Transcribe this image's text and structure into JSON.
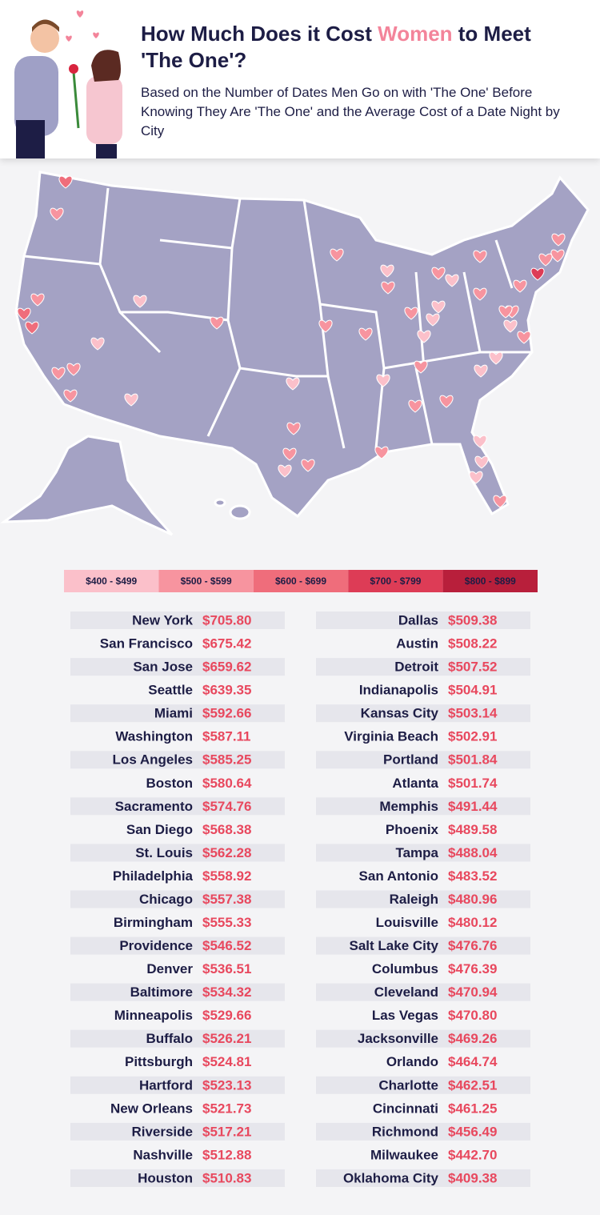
{
  "header": {
    "title": [
      "How Much Does it Cost ",
      "Women",
      " to Meet 'The One'?"
    ],
    "subtitle": "Based on the Number of Dates Men Go on with 'The One' Before Knowing They Are 'The One' and the Average Cost of a Date Night by City"
  },
  "legend": [
    {
      "min": 400,
      "max": 499,
      "label": "$400 - $499",
      "color": "#fbc0ca"
    },
    {
      "min": 500,
      "max": 599,
      "label": "$500 - $599",
      "color": "#f7949f"
    },
    {
      "min": 600,
      "max": 699,
      "label": "$600 - $699",
      "color": "#ef6d7b"
    },
    {
      "min": 700,
      "max": 799,
      "label": "$700 - $799",
      "color": "#dd3c56"
    },
    {
      "min": 800,
      "max": 899,
      "label": "$800 - $899",
      "color": "#b81f3b"
    }
  ],
  "table": {
    "columns": [
      {
        "rows": [
          {
            "city": "New York",
            "cost": {
              "value": 705.8,
              "label": "$705.80"
            }
          },
          {
            "city": "San Francisco",
            "cost": {
              "value": 675.42,
              "label": "$675.42"
            }
          },
          {
            "city": "San Jose",
            "cost": {
              "value": 659.62,
              "label": "$659.62"
            }
          },
          {
            "city": "Seattle",
            "cost": {
              "value": 639.35,
              "label": "$639.35"
            }
          },
          {
            "city": "Miami",
            "cost": {
              "value": 592.66,
              "label": "$592.66"
            }
          },
          {
            "city": "Washington",
            "cost": {
              "value": 587.11,
              "label": "$587.11"
            }
          },
          {
            "city": "Los Angeles",
            "cost": {
              "value": 585.25,
              "label": "$585.25"
            }
          },
          {
            "city": "Boston",
            "cost": {
              "value": 580.64,
              "label": "$580.64"
            }
          },
          {
            "city": "Sacramento",
            "cost": {
              "value": 574.76,
              "label": "$574.76"
            }
          },
          {
            "city": "San Diego",
            "cost": {
              "value": 568.38,
              "label": "$568.38"
            }
          },
          {
            "city": "St. Louis",
            "cost": {
              "value": 562.28,
              "label": "$562.28"
            }
          },
          {
            "city": "Philadelphia",
            "cost": {
              "value": 558.92,
              "label": "$558.92"
            }
          },
          {
            "city": "Chicago",
            "cost": {
              "value": 557.38,
              "label": "$557.38"
            }
          },
          {
            "city": "Birmingham",
            "cost": {
              "value": 555.33,
              "label": "$555.33"
            }
          },
          {
            "city": "Providence",
            "cost": {
              "value": 546.52,
              "label": "$546.52"
            }
          },
          {
            "city": "Denver",
            "cost": {
              "value": 536.51,
              "label": "$536.51"
            }
          },
          {
            "city": "Baltimore",
            "cost": {
              "value": 534.32,
              "label": "$534.32"
            }
          },
          {
            "city": "Minneapolis",
            "cost": {
              "value": 529.66,
              "label": "$529.66"
            }
          },
          {
            "city": "Buffalo",
            "cost": {
              "value": 526.21,
              "label": "$526.21"
            }
          },
          {
            "city": "Pittsburgh",
            "cost": {
              "value": 524.81,
              "label": "$524.81"
            }
          },
          {
            "city": "Hartford",
            "cost": {
              "value": 523.13,
              "label": "$523.13"
            }
          },
          {
            "city": "New Orleans",
            "cost": {
              "value": 521.73,
              "label": "$521.73"
            }
          },
          {
            "city": "Riverside",
            "cost": {
              "value": 517.21,
              "label": "$517.21"
            }
          },
          {
            "city": "Nashville",
            "cost": {
              "value": 512.88,
              "label": "$512.88"
            }
          },
          {
            "city": "Houston",
            "cost": {
              "value": 510.83,
              "label": "$510.83"
            }
          }
        ]
      },
      {
        "rows": [
          {
            "city": "Dallas",
            "cost": {
              "value": 509.38,
              "label": "$509.38"
            }
          },
          {
            "city": "Austin",
            "cost": {
              "value": 508.22,
              "label": "$508.22"
            }
          },
          {
            "city": "Detroit",
            "cost": {
              "value": 507.52,
              "label": "$507.52"
            }
          },
          {
            "city": "Indianapolis",
            "cost": {
              "value": 504.91,
              "label": "$504.91"
            }
          },
          {
            "city": "Kansas City",
            "cost": {
              "value": 503.14,
              "label": "$503.14"
            }
          },
          {
            "city": "Virginia Beach",
            "cost": {
              "value": 502.91,
              "label": "$502.91"
            }
          },
          {
            "city": "Portland",
            "cost": {
              "value": 501.84,
              "label": "$501.84"
            }
          },
          {
            "city": "Atlanta",
            "cost": {
              "value": 501.74,
              "label": "$501.74"
            }
          },
          {
            "city": "Memphis",
            "cost": {
              "value": 491.44,
              "label": "$491.44"
            }
          },
          {
            "city": "Phoenix",
            "cost": {
              "value": 489.58,
              "label": "$489.58"
            }
          },
          {
            "city": "Tampa",
            "cost": {
              "value": 488.04,
              "label": "$488.04"
            }
          },
          {
            "city": "San Antonio",
            "cost": {
              "value": 483.52,
              "label": "$483.52"
            }
          },
          {
            "city": "Raleigh",
            "cost": {
              "value": 480.96,
              "label": "$480.96"
            }
          },
          {
            "city": "Louisville",
            "cost": {
              "value": 480.12,
              "label": "$480.12"
            }
          },
          {
            "city": "Salt Lake City",
            "cost": {
              "value": 476.76,
              "label": "$476.76"
            }
          },
          {
            "city": "Columbus",
            "cost": {
              "value": 476.39,
              "label": "$476.39"
            }
          },
          {
            "city": "Cleveland",
            "cost": {
              "value": 470.94,
              "label": "$470.94"
            }
          },
          {
            "city": "Las Vegas",
            "cost": {
              "value": 470.8,
              "label": "$470.80"
            }
          },
          {
            "city": "Jacksonville",
            "cost": {
              "value": 469.26,
              "label": "$469.26"
            }
          },
          {
            "city": "Orlando",
            "cost": {
              "value": 464.74,
              "label": "$464.74"
            }
          },
          {
            "city": "Charlotte",
            "cost": {
              "value": 462.51,
              "label": "$462.51"
            }
          },
          {
            "city": "Cincinnati",
            "cost": {
              "value": 461.25,
              "label": "$461.25"
            }
          },
          {
            "city": "Richmond",
            "cost": {
              "value": 456.49,
              "label": "$456.49"
            }
          },
          {
            "city": "Milwaukee",
            "cost": {
              "value": 442.7,
              "label": "$442.70"
            }
          },
          {
            "city": "Oklahoma City",
            "cost": {
              "value": 409.38,
              "label": "$409.38"
            }
          }
        ]
      }
    ]
  }
}
